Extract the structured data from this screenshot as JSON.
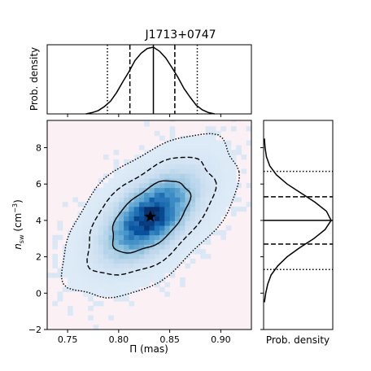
{
  "chart_data": [
    {
      "panel": "top-marginal",
      "type": "line",
      "title": "J1713+0747",
      "ylabel": "Prob. density",
      "xlim": [
        0.73,
        0.93
      ],
      "x": [
        0.768,
        0.774,
        0.78,
        0.786,
        0.792,
        0.798,
        0.804,
        0.81,
        0.816,
        0.822,
        0.828,
        0.834,
        0.84,
        0.846,
        0.852,
        0.858,
        0.864,
        0.87,
        0.876,
        0.882,
        0.888,
        0.894
      ],
      "y": [
        0.0,
        0.02,
        0.05,
        0.11,
        0.19,
        0.32,
        0.48,
        0.63,
        0.8,
        0.91,
        0.98,
        1.0,
        0.94,
        0.84,
        0.7,
        0.55,
        0.38,
        0.25,
        0.13,
        0.06,
        0.02,
        0.0
      ],
      "lines": {
        "median": 0.834,
        "sigma1": [
          0.811,
          0.855
        ],
        "sigma2": [
          0.789,
          0.877
        ]
      }
    },
    {
      "panel": "joint",
      "type": "heatmap",
      "xlabel": "Π (mas)",
      "ylabel": "n_sw (cm⁻³)",
      "xlim": [
        0.73,
        0.93
      ],
      "ylim": [
        -2,
        9.5
      ],
      "xticks": [
        "0.75",
        "0.80",
        "0.85",
        "0.90"
      ],
      "yticks": [
        "−2",
        "0",
        "2",
        "4",
        "6",
        "8"
      ],
      "peak": {
        "x": 0.831,
        "y": 4.2
      },
      "contours": "1σ solid, 2σ dashed, 3σ dotted"
    },
    {
      "panel": "right-marginal",
      "type": "line",
      "xlabel": "Prob. density",
      "ylim": [
        -2,
        9.5
      ],
      "y": [
        -0.5,
        0.0,
        0.5,
        1.0,
        1.5,
        2.0,
        2.5,
        3.0,
        3.5,
        4.0,
        4.5,
        5.0,
        5.5,
        6.0,
        6.5,
        7.0,
        7.5,
        8.0,
        8.5
      ],
      "x": [
        0.0,
        0.02,
        0.05,
        0.1,
        0.2,
        0.34,
        0.53,
        0.74,
        0.91,
        1.0,
        0.93,
        0.76,
        0.55,
        0.34,
        0.18,
        0.08,
        0.03,
        0.01,
        0.0
      ],
      "lines": {
        "median": 4.0,
        "sigma1": [
          2.7,
          5.3
        ],
        "sigma2": [
          1.3,
          6.7
        ]
      }
    }
  ]
}
